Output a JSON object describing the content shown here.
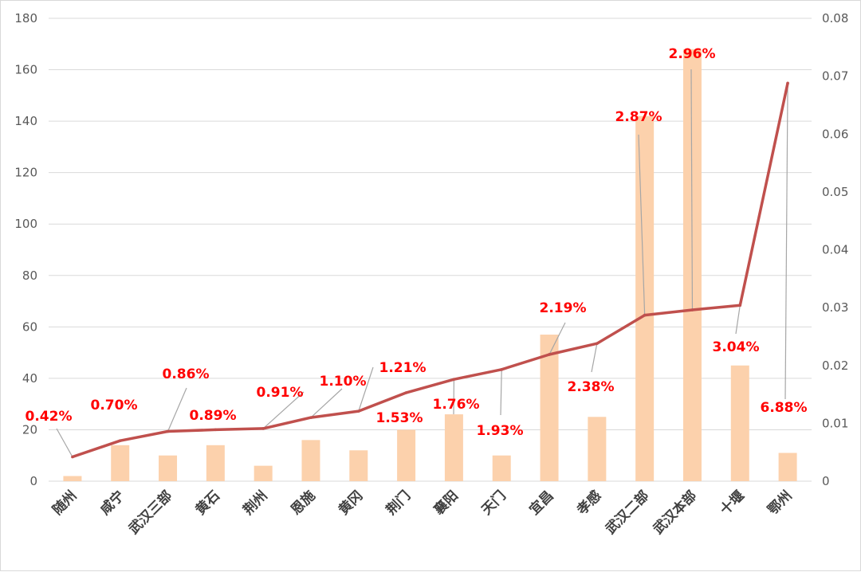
{
  "chart_data": {
    "type": "bar",
    "categories": [
      "随州",
      "咸宁",
      "武汉三部",
      "黄石",
      "荆州",
      "恩施",
      "黄冈",
      "荆门",
      "襄阳",
      "天门",
      "宜昌",
      "孝感",
      "武汉二部",
      "武汉本部",
      "十堰",
      "鄂州"
    ],
    "series": [
      {
        "type": "bar",
        "axis": "left",
        "values": [
          2,
          14,
          10,
          14,
          6,
          16,
          12,
          20,
          26,
          10,
          57,
          25,
          142,
          168,
          45,
          11
        ]
      },
      {
        "type": "line",
        "axis": "right",
        "values": [
          0.0042,
          0.007,
          0.0086,
          0.0089,
          0.0091,
          0.011,
          0.0121,
          0.0153,
          0.0176,
          0.0193,
          0.0219,
          0.0238,
          0.0287,
          0.0296,
          0.0304,
          0.0688
        ]
      }
    ],
    "data_labels": [
      "0.42%",
      "0.70%",
      "0.86%",
      "0.89%",
      "0.91%",
      "1.10%",
      "1.21%",
      "1.53%",
      "1.76%",
      "1.93%",
      "2.19%",
      "2.38%",
      "2.87%",
      "2.96%",
      "3.04%",
      "6.88%"
    ],
    "ylim_left": [
      0,
      180
    ],
    "yticks_left": [
      "0",
      "20",
      "40",
      "60",
      "80",
      "100",
      "120",
      "140",
      "160",
      "180"
    ],
    "ylim_right": [
      0,
      0.08
    ],
    "yticks_right": [
      "0",
      "0.01",
      "0.02",
      "0.03",
      "0.04",
      "0.05",
      "0.06",
      "0.07",
      "0.08"
    ],
    "grid": true,
    "colors": {
      "bar": "#fcd1ac",
      "line": "#c0504d",
      "label": "#ff0000",
      "leader": "#a6a6a6",
      "grid": "#d9d9d9"
    }
  }
}
